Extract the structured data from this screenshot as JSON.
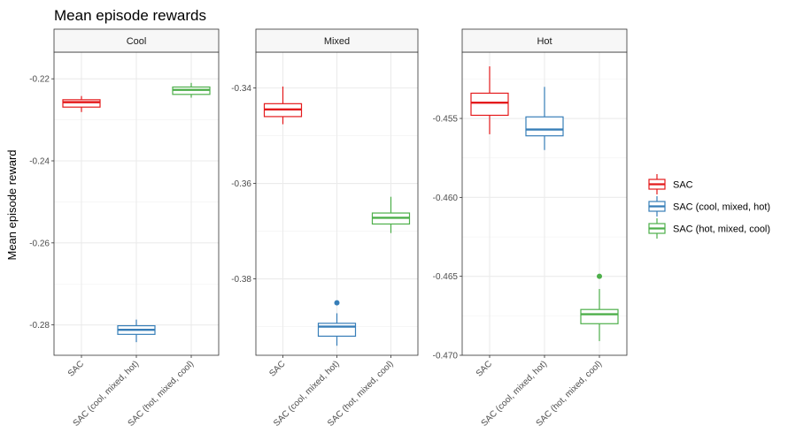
{
  "chart_data": {
    "type": "boxplot",
    "title": "Mean episode rewards",
    "ylabel": "Mean episode reward",
    "xlabel": "",
    "categories": [
      "SAC",
      "SAC (cool, mixed, hot)",
      "SAC (hot, mixed, cool)"
    ],
    "colors": [
      "#e41a1c",
      "#377eb8",
      "#4daf4a"
    ],
    "legend": {
      "placement": "right",
      "entries": [
        "SAC",
        "SAC (cool, mixed, hot)",
        "SAC (hot, mixed, cool)"
      ]
    },
    "grid": true,
    "panels": [
      {
        "name": "Cool",
        "ylim": [
          -0.2874,
          -0.2135
        ],
        "yticks": [
          -0.28,
          -0.26,
          -0.24,
          -0.22
        ],
        "ytick_labels": [
          "-0.28",
          "-0.26",
          "-0.24",
          "-0.22"
        ],
        "boxes": [
          {
            "whisker_low": -0.2281,
            "q1": -0.2269,
            "median": -0.2257,
            "q3": -0.2251,
            "whisker_high": -0.2242,
            "outliers": []
          },
          {
            "whisker_low": -0.2842,
            "q1": -0.2823,
            "median": -0.2812,
            "q3": -0.2802,
            "whisker_high": -0.2787,
            "outliers": []
          },
          {
            "whisker_low": -0.2246,
            "q1": -0.2238,
            "median": -0.2227,
            "q3": -0.222,
            "whisker_high": -0.221,
            "outliers": []
          }
        ]
      },
      {
        "name": "Mixed",
        "ylim": [
          -0.396,
          -0.3325
        ],
        "yticks": [
          -0.38,
          -0.36,
          -0.34
        ],
        "ytick_labels": [
          "-0.38",
          "-0.36",
          "-0.34"
        ],
        "boxes": [
          {
            "whisker_low": -0.3476,
            "q1": -0.346,
            "median": -0.3445,
            "q3": -0.3433,
            "whisker_high": -0.3397,
            "outliers": []
          },
          {
            "whisker_low": -0.394,
            "q1": -0.392,
            "median": -0.39,
            "q3": -0.3893,
            "whisker_high": -0.3872,
            "outliers": [
              -0.385
            ]
          },
          {
            "whisker_low": -0.3704,
            "q1": -0.3685,
            "median": -0.3672,
            "q3": -0.3662,
            "whisker_high": -0.3628,
            "outliers": []
          }
        ]
      },
      {
        "name": "Hot",
        "ylim": [
          -0.47,
          -0.4508
        ],
        "yticks": [
          -0.47,
          -0.465,
          -0.46,
          -0.455
        ],
        "ytick_labels": [
          "-0.470",
          "-0.465",
          "-0.460",
          "-0.455"
        ],
        "boxes": [
          {
            "whisker_low": -0.456,
            "q1": -0.4548,
            "median": -0.454,
            "q3": -0.4534,
            "whisker_high": -0.4517,
            "outliers": []
          },
          {
            "whisker_low": -0.457,
            "q1": -0.4561,
            "median": -0.4557,
            "q3": -0.4549,
            "whisker_high": -0.453,
            "outliers": []
          },
          {
            "whisker_low": -0.4691,
            "q1": -0.468,
            "median": -0.4674,
            "q3": -0.4671,
            "whisker_high": -0.4658,
            "outliers": [
              -0.465
            ]
          }
        ]
      }
    ]
  }
}
